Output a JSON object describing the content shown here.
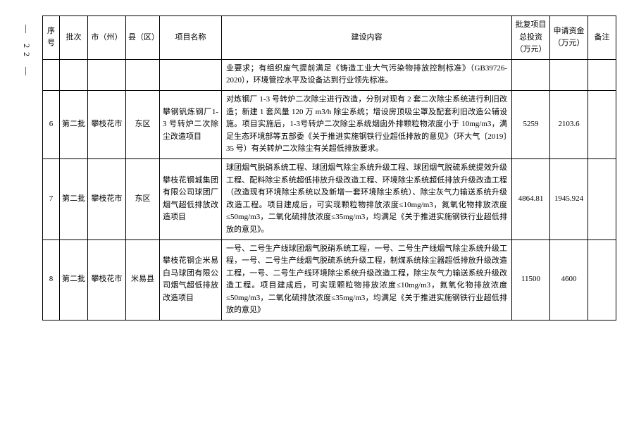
{
  "page_number": "— 22 —",
  "headers": {
    "seq": "序号",
    "batch": "批次",
    "city": "市（州）",
    "county": "县（区）",
    "name": "项目名称",
    "content": "建设内容",
    "invest": "批复项目总投资（万元）",
    "fund": "申请资金（万元）",
    "note": "备注"
  },
  "rows": [
    {
      "seq": "",
      "batch": "",
      "city": "",
      "county": "",
      "name": "",
      "content": "业要求；有组织废气提前满足《铸造工业大气污染物排放控制标准》（GB39726-2020），环境管控水平及设备达到行业领先标准。",
      "invest": "",
      "fund": "",
      "note": ""
    },
    {
      "seq": "6",
      "batch": "第二批",
      "city": "攀枝花市",
      "county": "东区",
      "name": "攀钢钒炼钢厂1-3 号转炉二次除尘改造项目",
      "content": "对炼钢厂 1-3 号转炉二次除尘进行改造，分别对现有 2 套二次除尘系统进行利旧改造；新建 1 套风量 120 万 m3/h 除尘系统；增设房顶吸尘罩及配套利旧改造公辅设施。项目实施后，1-3号转炉二次除尘系统烟囱外排颗粒物浓度小于 10mg/m3，满足生态环境部等五部委《关于推进实施钢铁行业超低排放的意见》（环大气〔2019〕35 号）有关转炉二次除尘有关超低排放要求。",
      "invest": "5259",
      "fund": "2103.6",
      "note": ""
    },
    {
      "seq": "7",
      "batch": "第二批",
      "city": "攀枝花市",
      "county": "东区",
      "name": "攀枝花钢城集团有限公司球团厂烟气超低排放改造项目",
      "content": "球团烟气脱硝系统工程、球团烟气除尘系统升级工程、球团烟气脱硫系统提效升级工程、配料除尘系统超低排放升级改造工程、环境除尘系统超低排放升级改造工程（改造现有环境除尘系统以及新增一套环境除尘系统）、除尘灰气力输送系统升级改造工程。项目建成后，可实现颗粒物排放浓度≤10mg/m3，氮氧化物排放浓度 ≤50mg/m3，二氧化硫排放浓度≤35mg/m3，均满足《关于推进实施钢铁行业超低排放的意见》。",
      "invest": "4864.81",
      "fund": "1945.924",
      "note": ""
    },
    {
      "seq": "8",
      "batch": "第二批",
      "city": "攀枝花市",
      "county": "米易县",
      "name": "攀枝花钢企米易白马球团有限公司烟气超低排放改造项目",
      "content": "一号、二号生产线球团烟气脱硝系统工程，一号、二号生产线烟气除尘系统升级工程，一号、二号生产线烟气脱硫系统升级工程，制煤系统除尘器超低排放升级改造工程，一号、二号生产线环境除尘系统升级改造工程，除尘灰气力输送系统升级改造工程。项目建成后，可实现颗粒物排放浓度≤10mg/m3，氮氧化物排放浓度≤50mg/m3，二氧化硫排放浓度≤35mg/m3，均满足《关于推进实施钢铁行业超低排放的意见》",
      "invest": "11500",
      "fund": "4600",
      "note": ""
    }
  ]
}
